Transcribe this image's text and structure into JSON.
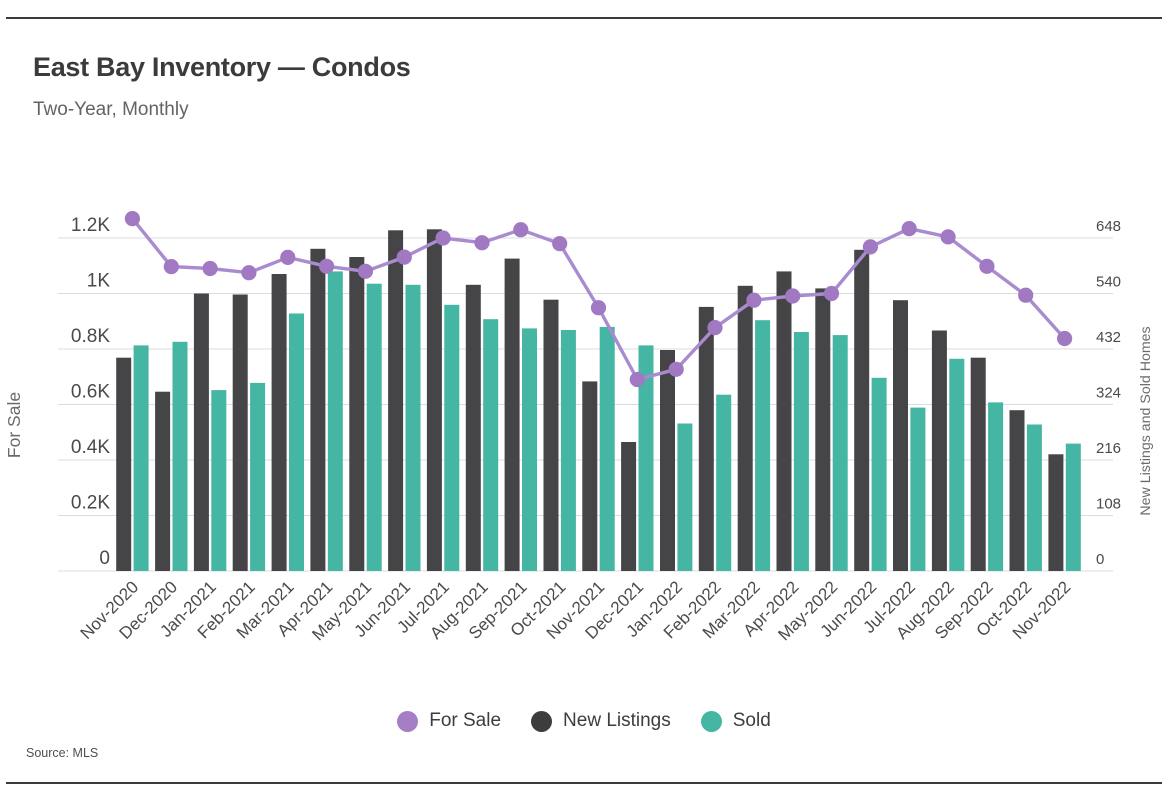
{
  "page": {
    "title": "East Bay Inventory — Condos",
    "subtitle": "Two-Year, Monthly",
    "source": "Source:  MLS"
  },
  "colors": {
    "rule": "#3b3b3b",
    "title": "#3b3b3b",
    "subtitle": "#636363",
    "gridline": "#dcdcdc",
    "tick_label": "#4a4a4a",
    "axis_title": "#6b6b6b",
    "source": "#4f4f4f",
    "background": "#ffffff",
    "for_sale_line": "#a98bd0",
    "for_sale_marker": "#a179c3",
    "new_listings_bar": "#454547",
    "sold_bar": "#45b5a4"
  },
  "legend": {
    "items": [
      {
        "label": "For Sale",
        "color": "#a57ec6"
      },
      {
        "label": "New Listings",
        "color": "#3d3d3f"
      },
      {
        "label": "Sold",
        "color": "#45b5a4"
      }
    ]
  },
  "chart_data": {
    "type": "bar",
    "subtype": "grouped bars with overlay line",
    "title": "East Bay Inventory — Condos",
    "subtitle": "Two-Year, Monthly",
    "grid": true,
    "legend_position": "bottom",
    "categories": [
      "Nov-2020",
      "Dec-2020",
      "Jan-2021",
      "Feb-2021",
      "Mar-2021",
      "Apr-2021",
      "May-2021",
      "Jun-2021",
      "Jul-2021",
      "Aug-2021",
      "Sep-2021",
      "Oct-2021",
      "Nov-2021",
      "Dec-2021",
      "Jan-2022",
      "Feb-2022",
      "Mar-2022",
      "Apr-2022",
      "May-2022",
      "Jun-2022",
      "Jul-2022",
      "Aug-2022",
      "Sep-2022",
      "Oct-2022",
      "Nov-2022"
    ],
    "series": [
      {
        "name": "For Sale",
        "type": "line",
        "axis": "left",
        "color_line": "#a98bd0",
        "color_marker": "#a179c3",
        "values": [
          1270,
          1097,
          1090,
          1075,
          1130,
          1098,
          1080,
          1131,
          1200,
          1183,
          1230,
          1180,
          949,
          690,
          727,
          877,
          976,
          991,
          1000,
          1168,
          1234,
          1204,
          1098,
          994,
          838
        ]
      },
      {
        "name": "New Listings",
        "type": "bar",
        "axis": "right",
        "color": "#454547",
        "values": [
          415,
          349,
          540,
          538,
          578,
          627,
          611,
          663,
          665,
          557,
          608,
          528,
          369,
          251,
          430,
          514,
          555,
          583,
          550,
          625,
          527,
          468,
          415,
          313,
          227
        ]
      },
      {
        "name": "Sold",
        "type": "bar",
        "axis": "right",
        "color": "#45b5a4",
        "values": [
          439,
          446,
          352,
          366,
          501,
          583,
          559,
          557,
          518,
          490,
          472,
          469,
          475,
          439,
          287,
          343,
          488,
          465,
          459,
          376,
          318,
          413,
          328,
          285,
          248
        ]
      }
    ],
    "left_axis": {
      "title": "For Sale",
      "tick_labels": [
        "0",
        "0.2K",
        "0.4K",
        "0.6K",
        "0.8K",
        "1K",
        "1.2K"
      ],
      "tick_values": [
        0,
        200,
        400,
        600,
        800,
        1000,
        1200
      ],
      "range": [
        0,
        1340
      ]
    },
    "right_axis": {
      "title": "New Listings and Sold Homes",
      "tick_labels": [
        "0",
        "108",
        "216",
        "324",
        "432",
        "540",
        "648"
      ],
      "tick_values": [
        0,
        108,
        216,
        324,
        432,
        540,
        648
      ],
      "range": [
        0,
        723.6
      ]
    }
  }
}
